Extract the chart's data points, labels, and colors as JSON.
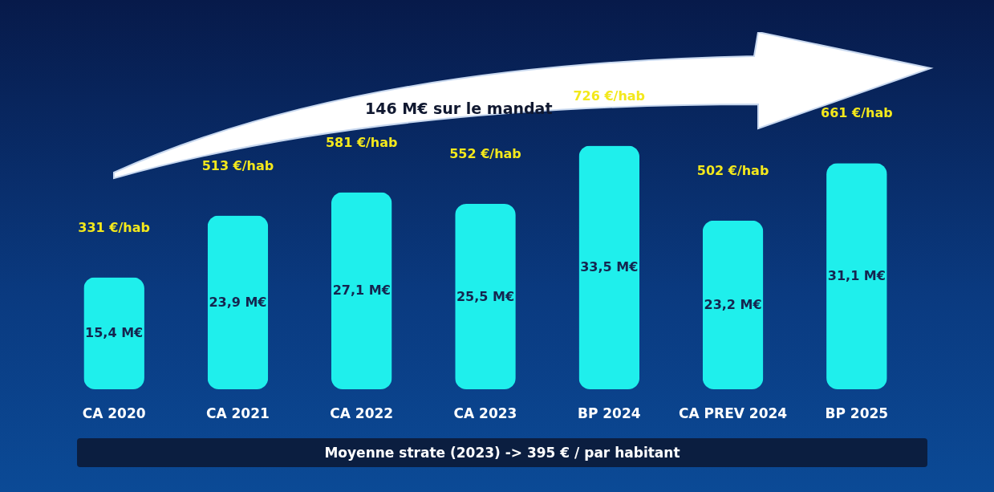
{
  "chart_data": {
    "type": "bar",
    "categories": [
      "CA 2020",
      "CA 2021",
      "CA  2022",
      "CA 2023",
      "BP 2024",
      "CA PREV 2024",
      "BP 2025"
    ],
    "values": [
      15.4,
      23.9,
      27.1,
      25.5,
      33.5,
      23.2,
      31.1
    ],
    "value_labels": [
      "15,4 M€",
      "23,9 M€",
      "27,1 M€",
      "25,5 M€",
      "33,5 M€",
      "23,2 M€",
      "31,1 M€"
    ],
    "color": "#1fefec",
    "tick_labels": "x",
    "annotations": [
      "331 €/hab",
      "513 €/hab",
      "581 €/hab",
      "552 €/hab",
      "726 €/hab",
      "502 €/hab",
      "661 €/hab",
      "146 M€ sur le mandat",
      "Moyenne strate (2023) -> 395 € / par habitant"
    ]
  }
}
